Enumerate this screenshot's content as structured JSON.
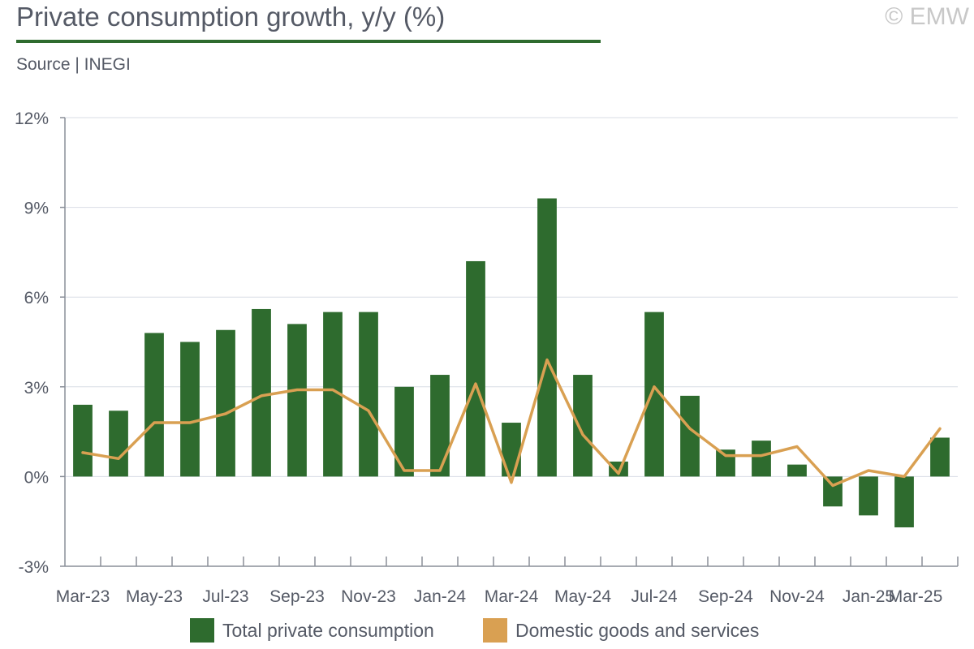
{
  "header": {
    "title": "Private consumption growth, y/y (%)",
    "source": "Source | INEGI",
    "copyright": "© EMW"
  },
  "colors": {
    "bar": "#2e6b2e",
    "line": "#d9a052",
    "axis": "#8a8f99",
    "grid": "#d9dde6",
    "text": "#555a66"
  },
  "chart_data": {
    "type": "bar",
    "categories": [
      "Mar-23",
      "Apr-23",
      "May-23",
      "Jun-23",
      "Jul-23",
      "Aug-23",
      "Sep-23",
      "Oct-23",
      "Nov-23",
      "Dec-23",
      "Jan-24",
      "Feb-24",
      "Mar-24",
      "Apr-24",
      "May-24",
      "Jun-24",
      "Jul-24",
      "Aug-24",
      "Sep-24",
      "Oct-24",
      "Nov-24",
      "Dec-24",
      "Jan-25",
      "Feb-25",
      "Mar-25"
    ],
    "x_tick_labels": [
      "Mar-23",
      "May-23",
      "Jul-23",
      "Sep-23",
      "Nov-23",
      "Jan-24",
      "Mar-24",
      "May-24",
      "Jul-24",
      "Sep-24",
      "Nov-24",
      "Jan-25",
      "Mar-25"
    ],
    "ylim": [
      -3,
      12
    ],
    "y_ticks": [
      -3,
      0,
      3,
      6,
      9,
      12
    ],
    "y_tick_labels": [
      "-3%",
      "0%",
      "3%",
      "6%",
      "9%",
      "12%"
    ],
    "grid": true,
    "legend_position": "bottom",
    "series": [
      {
        "name": "Total private consumption",
        "type": "bar",
        "values": [
          2.4,
          2.2,
          4.8,
          4.5,
          4.9,
          5.6,
          5.1,
          5.5,
          5.5,
          3.0,
          3.4,
          7.2,
          1.8,
          9.3,
          3.4,
          0.5,
          5.5,
          2.7,
          0.9,
          1.2,
          0.4,
          -1.0,
          -1.3,
          -1.7,
          1.3
        ]
      },
      {
        "name": "Domestic goods and services",
        "type": "line",
        "values": [
          0.8,
          0.6,
          1.8,
          1.8,
          2.1,
          2.7,
          2.9,
          2.9,
          2.2,
          0.2,
          0.2,
          3.1,
          -0.2,
          3.9,
          1.4,
          0.1,
          3.0,
          1.6,
          0.7,
          0.7,
          1.0,
          -0.3,
          0.2,
          0.0,
          1.6
        ]
      }
    ]
  }
}
